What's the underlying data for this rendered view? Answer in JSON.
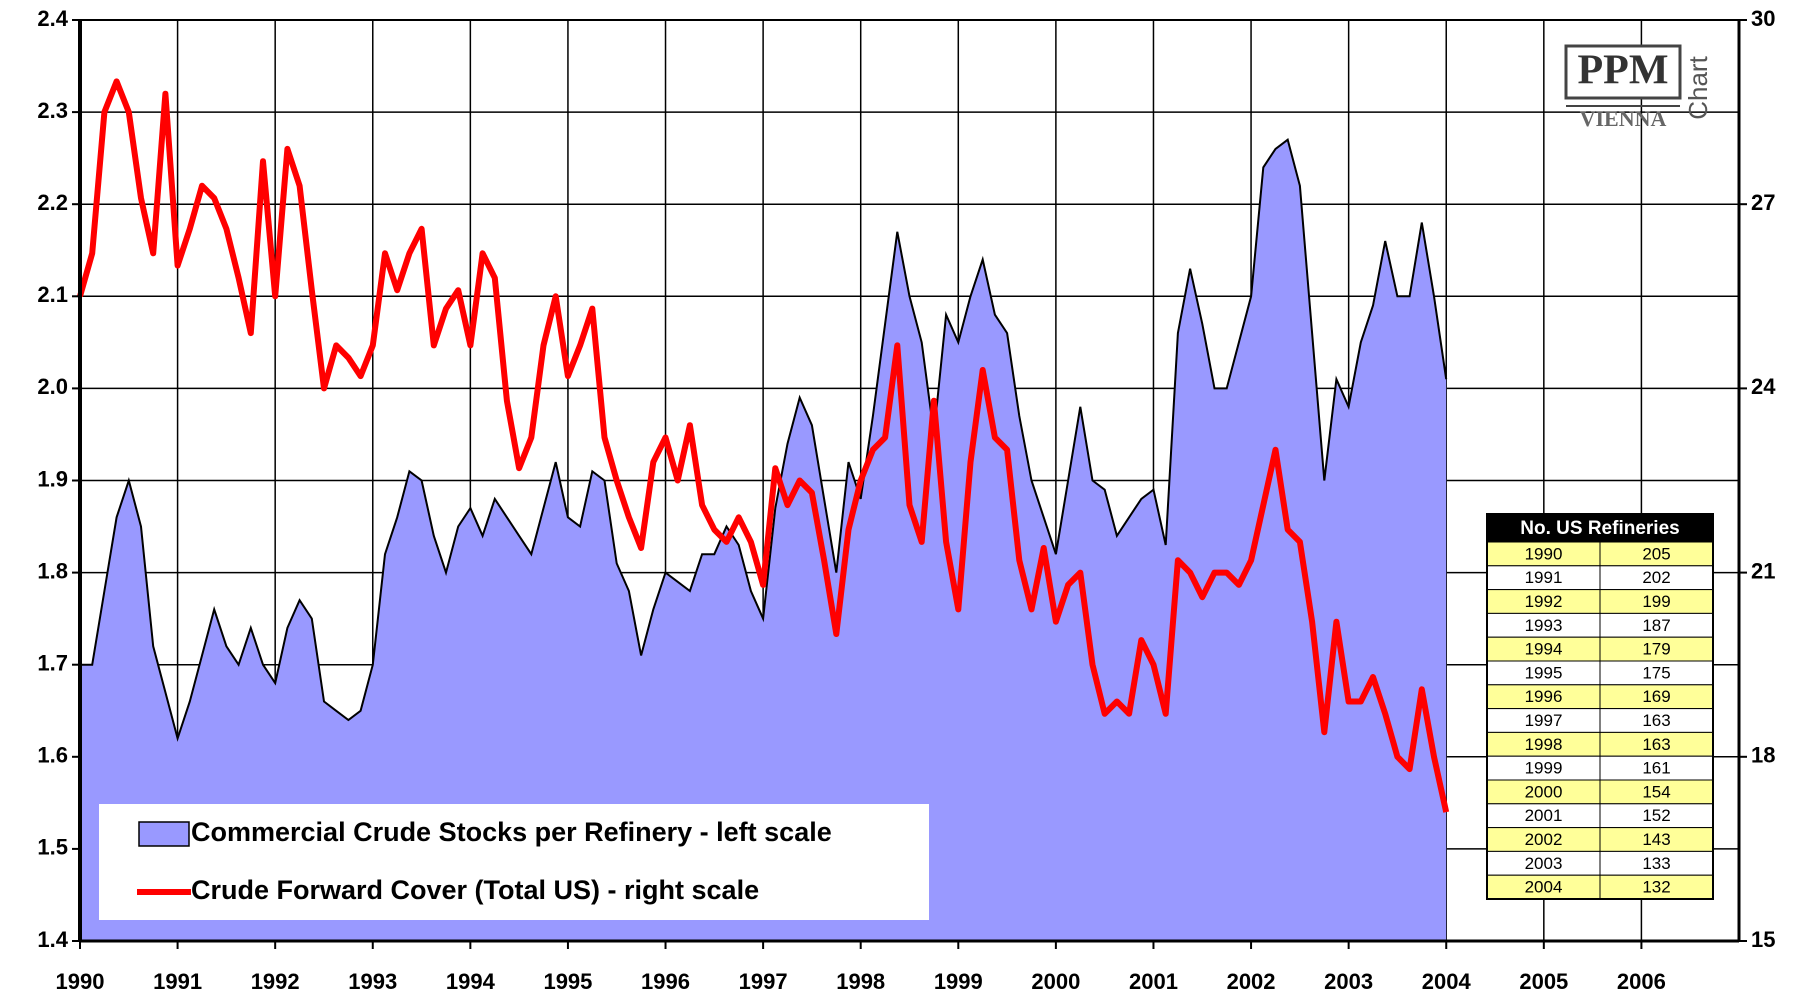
{
  "chart_data": {
    "type": "area-line",
    "x": [
      1990,
      1990.125,
      1990.25,
      1990.375,
      1990.5,
      1990.625,
      1990.75,
      1990.875,
      1991,
      1991.125,
      1991.25,
      1991.375,
      1991.5,
      1991.625,
      1991.75,
      1991.875,
      1992,
      1992.125,
      1992.25,
      1992.375,
      1992.5,
      1992.625,
      1992.75,
      1992.875,
      1993,
      1993.125,
      1993.25,
      1993.375,
      1993.5,
      1993.625,
      1993.75,
      1993.875,
      1994,
      1994.125,
      1994.25,
      1994.375,
      1994.5,
      1994.625,
      1994.75,
      1994.875,
      1995,
      1995.125,
      1995.25,
      1995.375,
      1995.5,
      1995.625,
      1995.75,
      1995.875,
      1996,
      1996.125,
      1996.25,
      1996.375,
      1996.5,
      1996.625,
      1996.75,
      1996.875,
      1997,
      1997.125,
      1997.25,
      1997.375,
      1997.5,
      1997.625,
      1997.75,
      1997.875,
      1998,
      1998.125,
      1998.25,
      1998.375,
      1998.5,
      1998.625,
      1998.75,
      1998.875,
      1999,
      1999.125,
      1999.25,
      1999.375,
      1999.5,
      1999.625,
      1999.75,
      1999.875,
      2000,
      2000.125,
      2000.25,
      2000.375,
      2000.5,
      2000.625,
      2000.75,
      2000.875,
      2001,
      2001.125,
      2001.25,
      2001.375,
      2001.5,
      2001.625,
      2001.75,
      2001.875,
      2002,
      2002.125,
      2002.25,
      2002.375,
      2002.5,
      2002.625,
      2002.75,
      2002.875,
      2003,
      2003.125,
      2003.25,
      2003.375,
      2003.5,
      2003.625,
      2003.75,
      2003.875,
      2004
    ],
    "series": [
      {
        "name": "Commercial Crude Stocks per Refinery - left scale",
        "kind": "area",
        "color": "#9999ff",
        "axis": "y",
        "values": [
          1.7,
          1.7,
          1.78,
          1.86,
          1.9,
          1.85,
          1.72,
          1.67,
          1.62,
          1.66,
          1.71,
          1.76,
          1.72,
          1.7,
          1.74,
          1.7,
          1.68,
          1.74,
          1.77,
          1.75,
          1.66,
          1.65,
          1.64,
          1.65,
          1.7,
          1.82,
          1.86,
          1.91,
          1.9,
          1.84,
          1.8,
          1.85,
          1.87,
          1.84,
          1.88,
          1.86,
          1.84,
          1.82,
          1.87,
          1.92,
          1.86,
          1.85,
          1.91,
          1.9,
          1.81,
          1.78,
          1.71,
          1.76,
          1.8,
          1.79,
          1.78,
          1.82,
          1.82,
          1.85,
          1.83,
          1.78,
          1.75,
          1.87,
          1.94,
          1.99,
          1.96,
          1.88,
          1.8,
          1.92,
          1.88,
          1.97,
          2.07,
          2.17,
          2.1,
          2.05,
          1.95,
          2.08,
          2.05,
          2.1,
          2.14,
          2.08,
          2.06,
          1.97,
          1.9,
          1.86,
          1.82,
          1.9,
          1.98,
          1.9,
          1.89,
          1.84,
          1.86,
          1.88,
          1.89,
          1.83,
          2.06,
          2.13,
          2.07,
          2.0,
          2.0,
          2.05,
          2.1,
          2.24,
          2.26,
          2.27,
          2.22,
          2.06,
          1.9,
          2.01,
          1.98,
          2.05,
          2.09,
          2.16,
          2.1,
          2.1,
          2.18,
          2.1,
          2.01
        ]
      },
      {
        "name": "Crude Forward Cover (Total US) - right scale",
        "kind": "line",
        "color": "#ff0000",
        "axis": "y2",
        "values": [
          25.5,
          26.2,
          28.5,
          29.0,
          28.5,
          27.1,
          26.2,
          28.8,
          26.0,
          26.6,
          27.3,
          27.1,
          26.6,
          25.8,
          24.9,
          27.7,
          25.5,
          27.9,
          27.3,
          25.6,
          24.0,
          24.7,
          24.5,
          24.2,
          24.7,
          26.2,
          25.6,
          26.2,
          26.6,
          24.7,
          25.3,
          25.6,
          24.7,
          26.2,
          25.8,
          23.8,
          22.7,
          23.2,
          24.7,
          25.5,
          24.2,
          24.7,
          25.3,
          23.2,
          22.5,
          21.9,
          21.4,
          22.8,
          23.2,
          22.5,
          23.4,
          22.1,
          21.7,
          21.5,
          21.9,
          21.5,
          20.8,
          22.7,
          22.1,
          22.5,
          22.3,
          21.2,
          20.0,
          21.7,
          22.5,
          23.0,
          23.2,
          24.7,
          22.1,
          21.5,
          23.8,
          21.5,
          20.4,
          22.8,
          24.3,
          23.2,
          23.0,
          21.2,
          20.4,
          21.4,
          20.2,
          20.8,
          21.0,
          19.5,
          18.7,
          18.9,
          18.7,
          19.9,
          19.5,
          18.7,
          21.2,
          21.0,
          20.6,
          21.0,
          21.0,
          20.8,
          21.2,
          22.1,
          23.0,
          21.7,
          21.5,
          20.2,
          18.4,
          20.2,
          18.9,
          18.9,
          19.3,
          18.7,
          18.0,
          17.8,
          19.1,
          18.0,
          17.1
        ]
      }
    ],
    "xlim": [
      1990,
      2007
    ],
    "xticks": [
      1990,
      1991,
      1992,
      1993,
      1994,
      1995,
      1996,
      1997,
      1998,
      1999,
      2000,
      2001,
      2002,
      2003,
      2004,
      2005,
      2006
    ],
    "ylim": [
      1.4,
      2.4
    ],
    "yticks": [
      1.4,
      1.5,
      1.6,
      1.7,
      1.8,
      1.9,
      {
        "value": 2,
        "label": "2.0"
      },
      2.1,
      2.2,
      2.3,
      2.4
    ],
    "y2lim": [
      15,
      30
    ],
    "y2ticks": [
      15,
      18,
      21,
      24,
      27,
      30
    ],
    "grid": true,
    "legend": "lower left",
    "table": {
      "title": "No. US Refineries",
      "rows": [
        [
          1990,
          205
        ],
        [
          1991,
          202
        ],
        [
          1992,
          199
        ],
        [
          1993,
          187
        ],
        [
          1994,
          179
        ],
        [
          1995,
          175
        ],
        [
          1996,
          169
        ],
        [
          1997,
          163
        ],
        [
          1998,
          163
        ],
        [
          1999,
          161
        ],
        [
          2000,
          154
        ],
        [
          2001,
          152
        ],
        [
          2002,
          143
        ],
        [
          2003,
          133
        ],
        [
          2004,
          132
        ]
      ]
    },
    "logo": {
      "mark": "PPM",
      "city": "VIENNA",
      "word": "Chart"
    }
  }
}
